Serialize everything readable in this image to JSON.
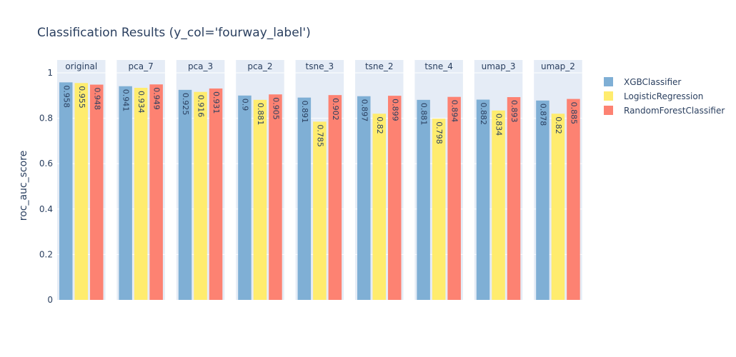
{
  "chart_data": {
    "type": "bar",
    "title": "Classification Results (y_col='fourway_label')",
    "ylabel": "roc_auc_score",
    "ylim": [
      0,
      1
    ],
    "yticks": [
      0,
      0.2,
      0.4,
      0.6,
      0.8,
      1
    ],
    "ytick_labels": [
      "0",
      "0.2",
      "0.4",
      "0.6",
      "0.8",
      "1"
    ],
    "grid": true,
    "legend_position": "right",
    "facets": [
      "original",
      "pca_7",
      "pca_3",
      "pca_2",
      "tsne_3",
      "tsne_2",
      "tsne_4",
      "umap_3",
      "umap_2"
    ],
    "series": [
      {
        "name": "XGBClassifier",
        "color": "#7fafd5",
        "values": [
          0.958,
          0.941,
          0.925,
          0.9,
          0.891,
          0.897,
          0.881,
          0.882,
          0.878
        ],
        "labels": [
          "0.958",
          "0.941",
          "0.925",
          "0.9",
          "0.891",
          "0.897",
          "0.881",
          "0.882",
          "0.878"
        ]
      },
      {
        "name": "LogisticRegression",
        "color": "#ffec6e",
        "values": [
          0.955,
          0.934,
          0.916,
          0.881,
          0.785,
          0.82,
          0.798,
          0.834,
          0.82
        ],
        "labels": [
          "0.955",
          "0.934",
          "0.916",
          "0.881",
          "0.785",
          "0.82",
          "0.798",
          "0.834",
          "0.82"
        ]
      },
      {
        "name": "RandomForestClassifier",
        "color": "#fd8272",
        "values": [
          0.948,
          0.949,
          0.931,
          0.905,
          0.902,
          0.899,
          0.894,
          0.893,
          0.885
        ],
        "labels": [
          "0.948",
          "0.949",
          "0.931",
          "0.905",
          "0.902",
          "0.899",
          "0.894",
          "0.893",
          "0.885"
        ]
      }
    ]
  }
}
